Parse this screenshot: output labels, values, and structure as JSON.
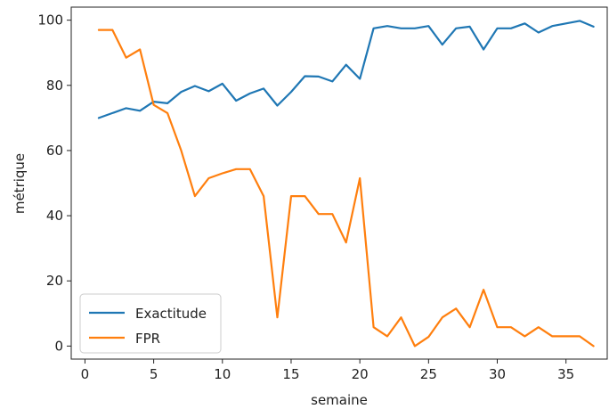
{
  "chart_data": {
    "type": "line",
    "xlabel": "semaine",
    "ylabel": "métrique",
    "xlim": [
      -1,
      38
    ],
    "ylim": [
      -4,
      104
    ],
    "xticks": [
      0,
      5,
      10,
      15,
      20,
      25,
      30,
      35
    ],
    "yticks": [
      0,
      20,
      40,
      60,
      80,
      100
    ],
    "legend_position": "lower-left",
    "grid": false,
    "x": [
      1,
      2,
      3,
      4,
      5,
      6,
      7,
      8,
      9,
      10,
      11,
      12,
      13,
      14,
      15,
      16,
      17,
      18,
      19,
      20,
      21,
      22,
      23,
      24,
      25,
      26,
      27,
      28,
      29,
      30,
      31,
      32,
      33,
      34,
      35,
      36,
      37
    ],
    "series": [
      {
        "name": "Exactitude",
        "color": "#1f77b4",
        "values": [
          70.0,
          71.5,
          73.0,
          72.2,
          75.0,
          74.5,
          78.0,
          79.8,
          78.2,
          80.5,
          75.3,
          77.5,
          79.0,
          73.8,
          78.0,
          82.8,
          82.7,
          81.2,
          86.3,
          82.0,
          97.5,
          98.2,
          97.5,
          97.5,
          98.2,
          92.5,
          97.5,
          98.0,
          91.0,
          97.5,
          97.5,
          99.0,
          96.2,
          98.2,
          99.0,
          99.8,
          98.0
        ]
      },
      {
        "name": "FPR",
        "color": "#ff7f0e",
        "values": [
          97.0,
          97.0,
          88.5,
          91.0,
          74.0,
          71.5,
          60.0,
          46.0,
          51.5,
          53.0,
          54.3,
          54.3,
          46.0,
          8.8,
          46.0,
          46.0,
          40.5,
          40.5,
          31.8,
          51.5,
          5.8,
          3.0,
          8.8,
          0.0,
          2.8,
          8.8,
          11.5,
          5.8,
          17.3,
          5.8,
          5.8,
          3.0,
          5.8,
          3.0,
          3.0,
          3.0,
          0.0
        ]
      }
    ]
  }
}
